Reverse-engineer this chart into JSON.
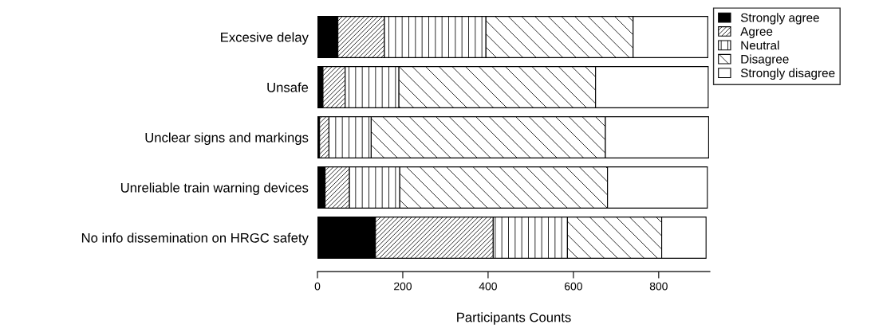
{
  "chart_data": {
    "type": "bar",
    "orientation": "horizontal",
    "stacked": true,
    "categories": [
      "Excesive delay",
      "Unsafe",
      "Unclear signs and markings",
      "Unreliable train warning devices",
      "No info dissemination on HRGC safety"
    ],
    "series": [
      {
        "name": "Strongly agree",
        "color": "#000000",
        "values": [
          48,
          13,
          5,
          18,
          136
        ]
      },
      {
        "name": "Agree",
        "color": "#ffffff",
        "values": [
          109,
          52,
          22,
          57,
          276
        ]
      },
      {
        "name": "Neutral",
        "color": "#ffffff",
        "values": [
          238,
          126,
          99,
          118,
          174
        ]
      },
      {
        "name": "Disagree",
        "color": "#ffffff",
        "values": [
          345,
          461,
          549,
          487,
          221
        ]
      },
      {
        "name": "Strongly disagree",
        "color": "#ffffff",
        "values": [
          175,
          264,
          242,
          234,
          104
        ]
      }
    ],
    "xlabel": "Participants Counts",
    "xlim": [
      0,
      920
    ],
    "xticks": [
      0,
      200,
      400,
      600,
      800
    ],
    "grid": false,
    "legend": "top right"
  }
}
